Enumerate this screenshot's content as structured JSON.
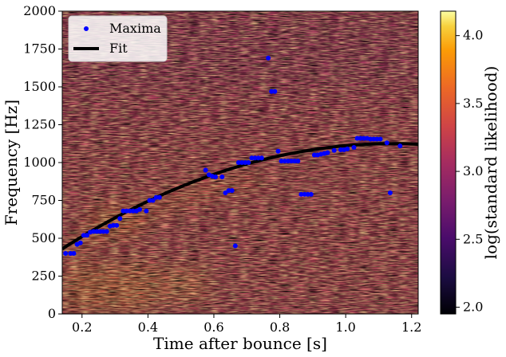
{
  "chart_data": {
    "type": "heatmap",
    "title": "",
    "xlabel": "Time after bounce [s]",
    "ylabel": "Frequency [Hz]",
    "xlim": [
      0.14,
      1.22
    ],
    "ylim": [
      0,
      2000
    ],
    "xticks": [
      0.2,
      0.4,
      0.6,
      0.8,
      1.0,
      1.2
    ],
    "xtick_labels": [
      "0.2",
      "0.4",
      "0.6",
      "0.8",
      "1.0",
      "1.2"
    ],
    "yticks": [
      0,
      250,
      500,
      750,
      1000,
      1250,
      1500,
      1750,
      2000
    ],
    "ytick_labels": [
      "0",
      "250",
      "500",
      "750",
      "1000",
      "1250",
      "1500",
      "1750",
      "2000"
    ],
    "colorbar": {
      "label": "log(standard likelihood)",
      "range": [
        1.95,
        4.18
      ],
      "ticks": [
        2.0,
        2.5,
        3.0,
        3.5,
        4.0
      ],
      "tick_labels": [
        "2.0",
        "2.5",
        "3.0",
        "3.5",
        "4.0"
      ],
      "colormap": "inferno"
    },
    "legend": {
      "placement": "upper-left",
      "entries": [
        {
          "label": "Maxima",
          "marker": "circle",
          "color": "#0000ff"
        },
        {
          "label": "Fit",
          "marker": "line",
          "color": "#000000"
        }
      ]
    },
    "series": [
      {
        "name": "Maxima",
        "kind": "scatter",
        "color": "#0000ff",
        "points": [
          [
            0.15,
            400
          ],
          [
            0.165,
            400
          ],
          [
            0.175,
            400
          ],
          [
            0.185,
            460
          ],
          [
            0.195,
            470
          ],
          [
            0.205,
            520
          ],
          [
            0.215,
            520
          ],
          [
            0.225,
            540
          ],
          [
            0.235,
            545
          ],
          [
            0.245,
            545
          ],
          [
            0.255,
            545
          ],
          [
            0.265,
            545
          ],
          [
            0.275,
            545
          ],
          [
            0.285,
            580
          ],
          [
            0.295,
            585
          ],
          [
            0.305,
            585
          ],
          [
            0.315,
            630
          ],
          [
            0.325,
            680
          ],
          [
            0.335,
            680
          ],
          [
            0.345,
            680
          ],
          [
            0.355,
            680
          ],
          [
            0.365,
            680
          ],
          [
            0.375,
            690
          ],
          [
            0.395,
            680
          ],
          [
            0.405,
            750
          ],
          [
            0.415,
            750
          ],
          [
            0.425,
            770
          ],
          [
            0.435,
            770
          ],
          [
            0.575,
            950
          ],
          [
            0.585,
            920
          ],
          [
            0.595,
            910
          ],
          [
            0.605,
            905
          ],
          [
            0.625,
            905
          ],
          [
            0.635,
            800
          ],
          [
            0.645,
            815
          ],
          [
            0.655,
            815
          ],
          [
            0.665,
            450
          ],
          [
            0.675,
            1000
          ],
          [
            0.685,
            1000
          ],
          [
            0.695,
            1000
          ],
          [
            0.705,
            1000
          ],
          [
            0.715,
            1030
          ],
          [
            0.725,
            1030
          ],
          [
            0.735,
            1030
          ],
          [
            0.745,
            1030
          ],
          [
            0.765,
            1690
          ],
          [
            0.775,
            1470
          ],
          [
            0.785,
            1470
          ],
          [
            0.795,
            1075
          ],
          [
            0.805,
            1010
          ],
          [
            0.815,
            1010
          ],
          [
            0.825,
            1010
          ],
          [
            0.835,
            1010
          ],
          [
            0.845,
            1010
          ],
          [
            0.855,
            1010
          ],
          [
            0.865,
            790
          ],
          [
            0.875,
            790
          ],
          [
            0.885,
            790
          ],
          [
            0.895,
            790
          ],
          [
            0.905,
            1050
          ],
          [
            0.915,
            1050
          ],
          [
            0.925,
            1055
          ],
          [
            0.935,
            1060
          ],
          [
            0.945,
            1065
          ],
          [
            0.965,
            1080
          ],
          [
            0.985,
            1085
          ],
          [
            0.995,
            1085
          ],
          [
            1.005,
            1090
          ],
          [
            1.025,
            1100
          ],
          [
            1.035,
            1160
          ],
          [
            1.045,
            1160
          ],
          [
            1.055,
            1160
          ],
          [
            1.065,
            1160
          ],
          [
            1.075,
            1155
          ],
          [
            1.085,
            1155
          ],
          [
            1.095,
            1155
          ],
          [
            1.105,
            1155
          ],
          [
            1.125,
            1130
          ],
          [
            1.135,
            800
          ],
          [
            1.165,
            1110
          ]
        ]
      },
      {
        "name": "Fit",
        "kind": "line",
        "color": "#000000",
        "model": "quadratic",
        "vertex": [
          1.14,
          1125
        ],
        "anchor": [
          0.14,
          430
        ]
      }
    ]
  }
}
